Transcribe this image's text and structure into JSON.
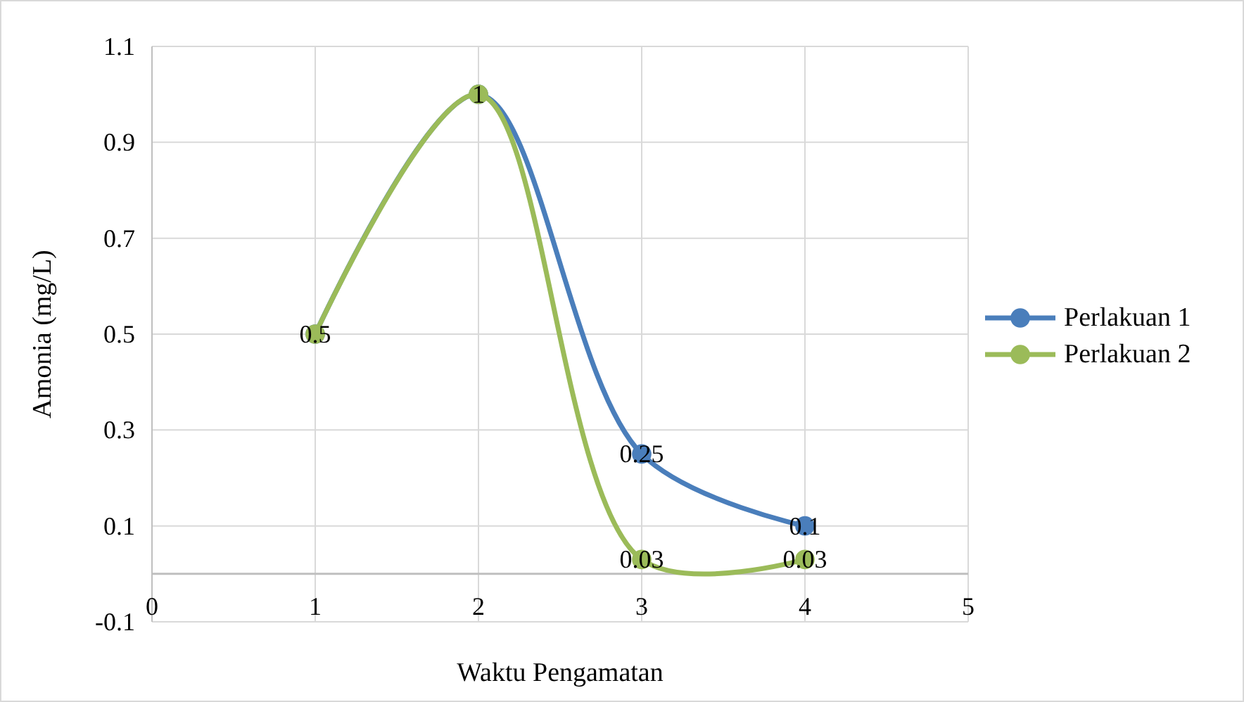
{
  "chart_data": {
    "type": "line",
    "xlabel": "Waktu Pengamatan",
    "ylabel": "Amonia (mg/L)",
    "x": [
      1,
      2,
      3,
      4
    ],
    "series": [
      {
        "name": "Perlakuan 1",
        "color": "#4a7ebb",
        "values": [
          0.5,
          1,
          0.25,
          0.1
        ],
        "value_labels": [
          "0.5",
          "1",
          "0.25",
          "0.1"
        ]
      },
      {
        "name": "Perlakuan 2",
        "color": "#9bbb59",
        "values": [
          0.5,
          1,
          0.03,
          0.03
        ],
        "value_labels": [
          null,
          null,
          "0.03",
          "0.03"
        ]
      }
    ],
    "xlim": [
      0,
      5
    ],
    "xticks": [
      0,
      1,
      2,
      3,
      4,
      5
    ],
    "ylim": [
      -0.1,
      1.1
    ],
    "yticks": [
      -0.1,
      0.1,
      0.3,
      0.5,
      0.7,
      0.9,
      1.1
    ],
    "grid": true,
    "legend": "right",
    "marker": "circle"
  }
}
